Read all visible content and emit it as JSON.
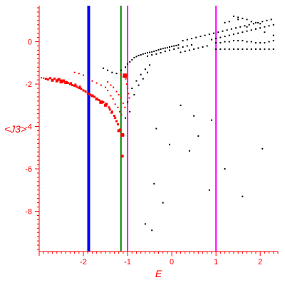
{
  "chart_data": {
    "type": "scatter",
    "title": "",
    "xlabel": "E",
    "ylabel": "<J3>",
    "xlim": [
      -3.0,
      2.4
    ],
    "ylim": [
      -9.9,
      1.7
    ],
    "x_ticks": [
      -2,
      -1,
      0,
      1,
      2
    ],
    "y_ticks": [
      0,
      -2,
      -4,
      -6,
      -8
    ],
    "grid": false,
    "axis_color": "#ff0000",
    "vertical_lines": [
      {
        "x": -1.88,
        "color": "#0000ff",
        "style": "thick"
      },
      {
        "x": -1.15,
        "color": "#008000",
        "style": "thin"
      },
      {
        "x": -1.0,
        "color": "#ff00ff",
        "style": "thin"
      },
      {
        "x": 1.0,
        "color": "#ff00ff",
        "style": "thin"
      }
    ],
    "series": [
      {
        "color": "#ff0000",
        "marker": "square",
        "points": [
          [
            -2.75,
            -1.72,
            3
          ],
          [
            -2.65,
            -1.74,
            3
          ],
          [
            -2.55,
            -1.78,
            4
          ],
          [
            -2.45,
            -1.85,
            4
          ],
          [
            -2.35,
            -1.95,
            3
          ],
          [
            -2.25,
            -2.05,
            3
          ],
          [
            -2.15,
            -2.12,
            3
          ],
          [
            -2.05,
            -2.22,
            3
          ],
          [
            -1.95,
            -2.35,
            3
          ],
          [
            -1.85,
            -2.5,
            3
          ],
          [
            -1.75,
            -2.6,
            3
          ],
          [
            -1.65,
            -2.75,
            3
          ],
          [
            -1.55,
            -2.85,
            3
          ],
          [
            -1.48,
            -2.95,
            4
          ],
          [
            -1.42,
            -3.1,
            3
          ],
          [
            -1.36,
            -3.35,
            3
          ],
          [
            -1.3,
            -3.5,
            3
          ],
          [
            -1.25,
            -3.75,
            3
          ],
          [
            -1.2,
            -4.2,
            4
          ],
          [
            -1.12,
            -4.4,
            5
          ],
          [
            -1.12,
            -5.4,
            4
          ],
          [
            -2.2,
            -1.45,
            2
          ],
          [
            -2.1,
            -1.5,
            2
          ],
          [
            -2.0,
            -1.58,
            2
          ],
          [
            -1.9,
            -1.72,
            2
          ],
          [
            -1.8,
            -1.85,
            2
          ],
          [
            -1.7,
            -1.95,
            2
          ],
          [
            -1.6,
            -2.05,
            2
          ],
          [
            -1.5,
            -2.15,
            2
          ],
          [
            -1.45,
            -2.3,
            2
          ],
          [
            -1.38,
            -2.55,
            2
          ],
          [
            -1.33,
            -2.7,
            2
          ],
          [
            -1.28,
            -2.95,
            2
          ],
          [
            -1.22,
            -3.1,
            2
          ],
          [
            -1.18,
            -3.3,
            2
          ],
          [
            -1.14,
            -3.45,
            2
          ],
          [
            -1.45,
            -1.9,
            2
          ],
          [
            -1.38,
            -2.05,
            2
          ],
          [
            -1.32,
            -2.15,
            2
          ],
          [
            -1.25,
            -2.35,
            2
          ],
          [
            -1.2,
            -2.5,
            2
          ],
          [
            -1.15,
            -2.65,
            2
          ],
          [
            -1.1,
            -2.9,
            2
          ],
          [
            -1.06,
            -3.1,
            2
          ],
          [
            -1.15,
            -1.55,
            2
          ],
          [
            -1.1,
            -1.65,
            2
          ],
          [
            -1.06,
            -1.6,
            6
          ],
          [
            -1.04,
            -1.75,
            2
          ],
          [
            -1.02,
            -2.0,
            2
          ],
          [
            -1.0,
            -2.2,
            2
          ],
          [
            -0.98,
            -2.45,
            2
          ],
          [
            -0.96,
            -2.65,
            2
          ],
          [
            -2.95,
            -1.7,
            2
          ],
          [
            -2.9,
            -1.72,
            2
          ],
          [
            -2.85,
            -1.75,
            3
          ],
          [
            -2.8,
            -1.78,
            3
          ],
          [
            -2.7,
            -1.82,
            4
          ],
          [
            -2.6,
            -1.85,
            4
          ],
          [
            -2.5,
            -1.88,
            5
          ],
          [
            -2.4,
            -1.93,
            4
          ],
          [
            -2.3,
            -2.0,
            3
          ],
          [
            -2.2,
            -2.08,
            3
          ],
          [
            -2.1,
            -2.18,
            3
          ],
          [
            -2.0,
            -2.3,
            3
          ],
          [
            -1.9,
            -2.45,
            3
          ],
          [
            -1.8,
            -2.55,
            4
          ],
          [
            -1.7,
            -2.7,
            4
          ],
          [
            -1.6,
            -2.85,
            5
          ],
          [
            -1.5,
            -3.0,
            4
          ],
          [
            -1.4,
            -3.2,
            3
          ],
          [
            -1.35,
            -3.3,
            3
          ],
          [
            -1.28,
            -3.6,
            3
          ],
          [
            -1.22,
            -3.9,
            3
          ],
          [
            -1.17,
            -4.15,
            3
          ],
          [
            -1.1,
            -4.4,
            3
          ],
          [
            -2.58,
            -1.8,
            3
          ],
          [
            -2.48,
            -1.83,
            3
          ],
          [
            -2.38,
            -1.9,
            3
          ],
          [
            -2.28,
            -1.96,
            3
          ],
          [
            -2.18,
            -2.03,
            3
          ],
          [
            -2.08,
            -2.12,
            3
          ]
        ]
      },
      {
        "color": "#000000",
        "marker": "dot",
        "points": [
          [
            -1.55,
            -1.25
          ],
          [
            -1.45,
            -1.35
          ],
          [
            -1.35,
            -1.45
          ],
          [
            -1.25,
            -1.5
          ],
          [
            -1.15,
            -1.35
          ],
          [
            -1.05,
            -1.2
          ],
          [
            -1.0,
            -1.05
          ],
          [
            -0.95,
            -0.95
          ],
          [
            -0.9,
            -0.85
          ],
          [
            -0.85,
            -0.75
          ],
          [
            -0.8,
            -0.7
          ],
          [
            -0.75,
            -0.65
          ],
          [
            -0.7,
            -0.62
          ],
          [
            -0.65,
            -0.58
          ],
          [
            -0.6,
            -0.55
          ],
          [
            -0.55,
            -0.52
          ],
          [
            -0.5,
            -0.5
          ],
          [
            -0.45,
            -0.48
          ],
          [
            -0.4,
            -0.45
          ],
          [
            -0.35,
            -0.42
          ],
          [
            -0.3,
            -0.38
          ],
          [
            -0.25,
            -0.35
          ],
          [
            -0.2,
            -0.32
          ],
          [
            -0.15,
            -0.3
          ],
          [
            -0.1,
            -0.28
          ],
          [
            -0.05,
            -0.25
          ],
          [
            0.0,
            -0.22
          ],
          [
            0.05,
            -0.2
          ],
          [
            0.1,
            -0.18
          ],
          [
            0.15,
            -0.15
          ],
          [
            -0.55,
            -0.68
          ],
          [
            -0.45,
            -0.62
          ],
          [
            -0.35,
            -0.58
          ],
          [
            -0.25,
            -0.52
          ],
          [
            -0.15,
            -0.45
          ],
          [
            -0.05,
            -0.4
          ],
          [
            0.05,
            -0.35
          ],
          [
            0.15,
            -0.3
          ],
          [
            0.25,
            -0.25
          ],
          [
            0.35,
            -0.2
          ],
          [
            0.45,
            -0.15
          ],
          [
            0.2,
            -0.5
          ],
          [
            0.3,
            -0.45
          ],
          [
            0.4,
            -0.4
          ],
          [
            0.5,
            -0.35
          ],
          [
            0.6,
            -0.3
          ],
          [
            0.7,
            -0.25
          ],
          [
            0.8,
            -0.2
          ],
          [
            0.25,
            0.05
          ],
          [
            0.35,
            0.1
          ],
          [
            0.45,
            0.15
          ],
          [
            0.55,
            0.2
          ],
          [
            0.65,
            0.25
          ],
          [
            0.75,
            0.3
          ],
          [
            0.85,
            0.35
          ],
          [
            0.95,
            0.4
          ],
          [
            1.05,
            0.45
          ],
          [
            1.15,
            0.5
          ],
          [
            1.25,
            0.55
          ],
          [
            1.35,
            0.6
          ],
          [
            1.45,
            0.65
          ],
          [
            1.55,
            0.7
          ],
          [
            1.65,
            0.75
          ],
          [
            1.75,
            0.8
          ],
          [
            1.85,
            0.85
          ],
          [
            1.95,
            0.9
          ],
          [
            2.05,
            0.95
          ],
          [
            2.15,
            1.0
          ],
          [
            2.25,
            1.05
          ],
          [
            0.9,
            0.1
          ],
          [
            1.0,
            0.15
          ],
          [
            1.1,
            0.2
          ],
          [
            1.2,
            0.25
          ],
          [
            1.3,
            0.3
          ],
          [
            1.4,
            0.35
          ],
          [
            1.5,
            0.4
          ],
          [
            1.6,
            0.45
          ],
          [
            1.7,
            0.5
          ],
          [
            1.8,
            0.55
          ],
          [
            1.9,
            0.6
          ],
          [
            2.0,
            0.65
          ],
          [
            2.1,
            0.7
          ],
          [
            2.2,
            0.75
          ],
          [
            2.3,
            0.8
          ],
          [
            1.0,
            -0.35
          ],
          [
            1.1,
            -0.35
          ],
          [
            1.2,
            -0.35
          ],
          [
            1.3,
            -0.35
          ],
          [
            1.4,
            -0.35
          ],
          [
            1.5,
            -0.35
          ],
          [
            1.6,
            -0.35
          ],
          [
            1.7,
            -0.35
          ],
          [
            1.8,
            -0.35
          ],
          [
            1.9,
            -0.35
          ],
          [
            2.0,
            -0.35
          ],
          [
            2.1,
            -0.35
          ],
          [
            2.2,
            -0.35
          ],
          [
            2.3,
            -0.35
          ],
          [
            1.0,
            -0.05
          ],
          [
            1.1,
            -0.05
          ],
          [
            1.2,
            0.0
          ],
          [
            1.3,
            0.0
          ],
          [
            1.4,
            0.05
          ],
          [
            1.5,
            0.05
          ],
          [
            1.6,
            0.05
          ],
          [
            1.7,
            0.0
          ],
          [
            1.8,
            0.0
          ],
          [
            1.9,
            -0.05
          ],
          [
            2.0,
            -0.05
          ],
          [
            2.1,
            -0.05
          ],
          [
            2.2,
            0.0
          ],
          [
            2.3,
            0.05
          ],
          [
            1.4,
            1.2
          ],
          [
            1.5,
            1.15
          ],
          [
            1.6,
            1.1
          ],
          [
            1.7,
            1.05
          ],
          [
            1.8,
            0.95
          ],
          [
            1.9,
            0.9
          ],
          [
            2.0,
            0.85
          ],
          [
            1.2,
            0.9
          ],
          [
            1.3,
            0.95
          ],
          [
            1.5,
            1.05
          ],
          [
            1.7,
            0.7
          ],
          [
            1.9,
            0.6
          ],
          [
            2.1,
            0.45
          ],
          [
            2.3,
            0.3
          ],
          [
            -0.9,
            -2.2
          ],
          [
            -0.8,
            -1.85
          ],
          [
            -0.7,
            -1.55
          ],
          [
            -0.6,
            -1.3
          ],
          [
            -0.5,
            -1.1
          ],
          [
            -0.85,
            -2.5
          ],
          [
            -0.75,
            -2.05
          ],
          [
            -0.65,
            -1.75
          ],
          [
            -0.55,
            -1.45
          ],
          [
            -1.0,
            -2.85
          ],
          [
            -0.95,
            -3.3
          ],
          [
            -1.05,
            -3.6
          ],
          [
            -0.4,
            -6.7
          ],
          [
            -0.2,
            -7.6
          ],
          [
            -0.45,
            -8.9
          ],
          [
            -0.6,
            -8.6
          ],
          [
            -0.35,
            -4.1
          ],
          [
            -0.05,
            -4.85
          ],
          [
            0.4,
            -5.15
          ],
          [
            0.6,
            -4.45
          ],
          [
            0.85,
            -7.0
          ],
          [
            1.2,
            -6.0
          ],
          [
            1.6,
            -7.3
          ],
          [
            2.05,
            -5.05
          ],
          [
            0.9,
            -3.7
          ],
          [
            0.5,
            -3.5
          ],
          [
            0.2,
            -3.0
          ]
        ]
      }
    ]
  }
}
